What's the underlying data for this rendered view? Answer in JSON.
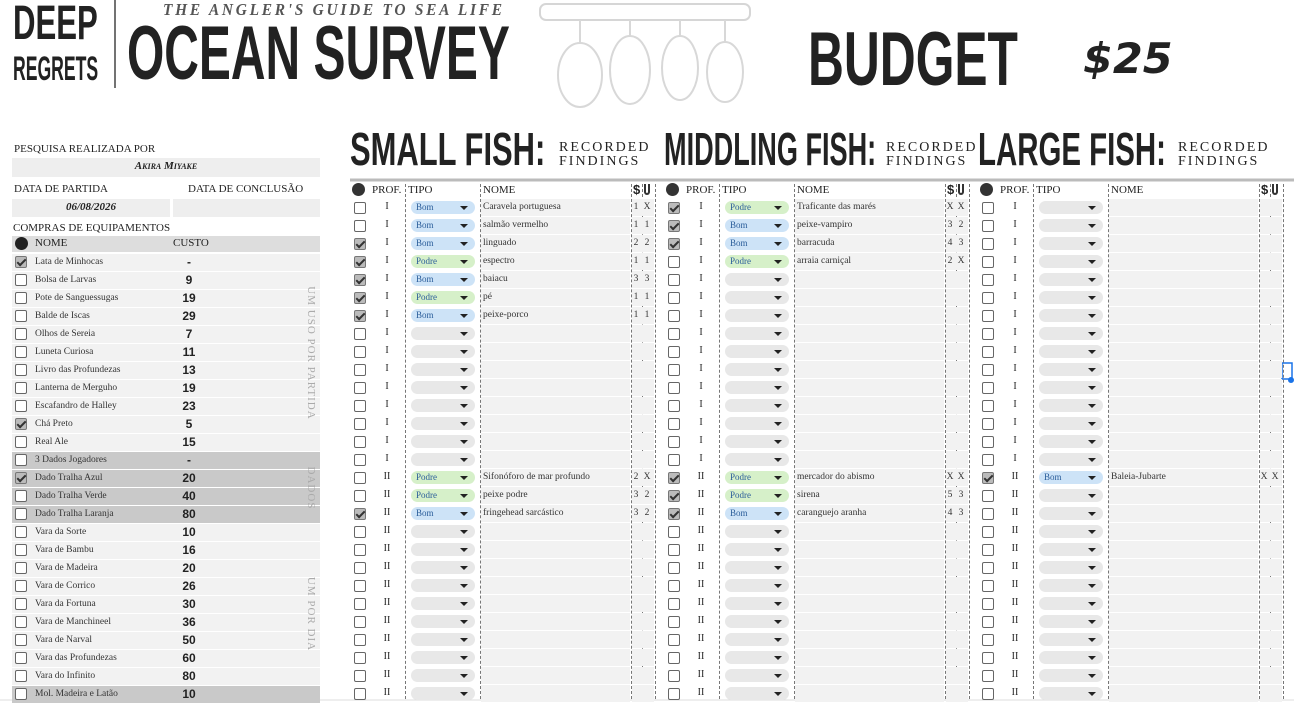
{
  "header": {
    "logo_top": "DEEP",
    "logo_bottom": "REGRETS",
    "tagline": "THE ANGLER'S GUIDE TO SEA LIFE",
    "title": "OCEAN SURVEY",
    "budget_label": "BUDGET",
    "budget_value": "$25"
  },
  "survey": {
    "surveyor_label": "PESQUISA REALIZADA POR",
    "surveyor": "Akira Miyake",
    "start_label": "DATA DE PARTIDA",
    "end_label": "DATA DE CONCLUSÃO",
    "start_date": "06/08/2026"
  },
  "equipment": {
    "title": "COMPRAS DE EQUIPAMENTOS",
    "name_header": "NOME",
    "cost_header": "CUSTO",
    "groups": [
      {
        "label": "UM USO POR PARTIDA",
        "items": [
          {
            "name": "Lata de Minhocas",
            "cost": "-",
            "checked": true,
            "shaded": false
          },
          {
            "name": "Bolsa de Larvas",
            "cost": 9,
            "checked": false,
            "shaded": false
          },
          {
            "name": "Pote de Sanguessugas",
            "cost": 19,
            "checked": false,
            "shaded": false
          },
          {
            "name": "Balde de Iscas",
            "cost": 29,
            "checked": false,
            "shaded": false
          },
          {
            "name": "Olhos de Sereia",
            "cost": 7,
            "checked": false,
            "shaded": false
          },
          {
            "name": "Luneta Curiosa",
            "cost": 11,
            "checked": false,
            "shaded": false
          },
          {
            "name": "Livro das Profundezas",
            "cost": 13,
            "checked": false,
            "shaded": false
          },
          {
            "name": "Lanterna de Merguho",
            "cost": 19,
            "checked": false,
            "shaded": false
          },
          {
            "name": "Escafandro de Halley",
            "cost": 23,
            "checked": false,
            "shaded": false
          },
          {
            "name": "Chá Preto",
            "cost": 5,
            "checked": true,
            "shaded": false
          },
          {
            "name": "Real Ale",
            "cost": 15,
            "checked": false,
            "shaded": false
          }
        ]
      },
      {
        "label": "DADOS",
        "items": [
          {
            "name": "3 Dados Jogadores",
            "cost": "-",
            "checked": false,
            "shaded": true
          },
          {
            "name": "Dado Tralha Azul",
            "cost": 20,
            "checked": true,
            "shaded": true
          },
          {
            "name": "Dado Tralha Verde",
            "cost": 40,
            "checked": false,
            "shaded": true
          },
          {
            "name": "Dado Tralha Laranja",
            "cost": 80,
            "checked": false,
            "shaded": true
          }
        ]
      },
      {
        "label": "UM POR DIA",
        "items": [
          {
            "name": "Vara da Sorte",
            "cost": 10,
            "checked": false,
            "shaded": false
          },
          {
            "name": "Vara de Bambu",
            "cost": 16,
            "checked": false,
            "shaded": false
          },
          {
            "name": "Vara de Madeira",
            "cost": 20,
            "checked": false,
            "shaded": false
          },
          {
            "name": "Vara de Corrico",
            "cost": 26,
            "checked": false,
            "shaded": false
          },
          {
            "name": "Vara da Fortuna",
            "cost": 30,
            "checked": false,
            "shaded": false
          },
          {
            "name": "Vara de Manchineel",
            "cost": 36,
            "checked": false,
            "shaded": false
          },
          {
            "name": "Vara de Narval",
            "cost": 50,
            "checked": false,
            "shaded": false
          },
          {
            "name": "Vara das Profundezas",
            "cost": 60,
            "checked": false,
            "shaded": false
          },
          {
            "name": "Vara do Infinito",
            "cost": 80,
            "checked": false,
            "shaded": false
          },
          {
            "name": "Mol. Madeira e Latão",
            "cost": 10,
            "checked": false,
            "shaded": true
          }
        ]
      }
    ]
  },
  "type_colors": {
    "Bom": "#cde3f7",
    "Podre": "#d6f0c9"
  },
  "fish_sections": [
    {
      "title": "SMALL FISH:",
      "subtitle": [
        "RECORDED",
        "FINDINGS"
      ],
      "headers": {
        "prof": "PROF.",
        "tipo": "TIPO",
        "nome": "NOME",
        "cost": "$"
      },
      "rows": [
        {
          "checked": false,
          "depth": "I",
          "type": "Bom",
          "name": "Caravela portuguesa",
          "cost": 1,
          "hook": "X"
        },
        {
          "checked": false,
          "depth": "I",
          "type": "Bom",
          "name": "salmão vermelho",
          "cost": 1,
          "hook": 1
        },
        {
          "checked": true,
          "depth": "I",
          "type": "Bom",
          "name": "linguado",
          "cost": 2,
          "hook": 2
        },
        {
          "checked": true,
          "depth": "I",
          "type": "Podre",
          "name": "espectro",
          "cost": 1,
          "hook": 1
        },
        {
          "checked": true,
          "depth": "I",
          "type": "Bom",
          "name": "baiacu",
          "cost": 3,
          "hook": 3
        },
        {
          "checked": true,
          "depth": "I",
          "type": "Podre",
          "name": "pé",
          "cost": 1,
          "hook": 1
        },
        {
          "checked": true,
          "depth": "I",
          "type": "Bom",
          "name": "peixe-porco",
          "cost": 1,
          "hook": 1
        },
        {
          "checked": false,
          "depth": "I"
        },
        {
          "checked": false,
          "depth": "I"
        },
        {
          "checked": false,
          "depth": "I"
        },
        {
          "checked": false,
          "depth": "I"
        },
        {
          "checked": false,
          "depth": "I"
        },
        {
          "checked": false,
          "depth": "I"
        },
        {
          "checked": false,
          "depth": "I"
        },
        {
          "checked": false,
          "depth": "I"
        },
        {
          "checked": false,
          "depth": "II",
          "type": "Podre",
          "name": "Sifonóforo de mar profundo",
          "cost": 2,
          "hook": "X"
        },
        {
          "checked": false,
          "depth": "II",
          "type": "Podre",
          "name": "peixe podre",
          "cost": 3,
          "hook": 2
        },
        {
          "checked": true,
          "depth": "II",
          "type": "Bom",
          "name": "fringehead sarcástico",
          "cost": 3,
          "hook": 2
        },
        {
          "checked": false,
          "depth": "II"
        },
        {
          "checked": false,
          "depth": "II"
        },
        {
          "checked": false,
          "depth": "II"
        },
        {
          "checked": false,
          "depth": "II"
        },
        {
          "checked": false,
          "depth": "II"
        },
        {
          "checked": false,
          "depth": "II"
        },
        {
          "checked": false,
          "depth": "II"
        },
        {
          "checked": false,
          "depth": "II"
        },
        {
          "checked": false,
          "depth": "II"
        },
        {
          "checked": false,
          "depth": "II"
        }
      ]
    },
    {
      "title": "MIDDLING FISH:",
      "subtitle": [
        "RECORDED",
        "FINDINGS"
      ],
      "headers": {
        "prof": "PROF.",
        "tipo": "TIPO",
        "nome": "NOME",
        "cost": "$"
      },
      "rows": [
        {
          "checked": true,
          "depth": "I",
          "type": "Podre",
          "name": "Traficante das marés",
          "cost": "X",
          "hook": "X"
        },
        {
          "checked": true,
          "depth": "I",
          "type": "Bom",
          "name": "peixe-vampiro",
          "cost": 3,
          "hook": 2
        },
        {
          "checked": true,
          "depth": "I",
          "type": "Bom",
          "name": "barracuda",
          "cost": 4,
          "hook": 3
        },
        {
          "checked": false,
          "depth": "I",
          "type": "Podre",
          "name": "arraia carniçal",
          "cost": 2,
          "hook": "X"
        },
        {
          "checked": false,
          "depth": "I"
        },
        {
          "checked": false,
          "depth": "I"
        },
        {
          "checked": false,
          "depth": "I"
        },
        {
          "checked": false,
          "depth": "I"
        },
        {
          "checked": false,
          "depth": "I"
        },
        {
          "checked": false,
          "depth": "I"
        },
        {
          "checked": false,
          "depth": "I"
        },
        {
          "checked": false,
          "depth": "I"
        },
        {
          "checked": false,
          "depth": "I"
        },
        {
          "checked": false,
          "depth": "I"
        },
        {
          "checked": false,
          "depth": "I"
        },
        {
          "checked": true,
          "depth": "II",
          "type": "Podre",
          "name": "mercador do abismo",
          "cost": "X",
          "hook": "X"
        },
        {
          "checked": true,
          "depth": "II",
          "type": "Podre",
          "name": "sirena",
          "cost": 5,
          "hook": 3
        },
        {
          "checked": true,
          "depth": "II",
          "type": "Bom",
          "name": "caranguejo aranha",
          "cost": 4,
          "hook": 3
        },
        {
          "checked": false,
          "depth": "II"
        },
        {
          "checked": false,
          "depth": "II"
        },
        {
          "checked": false,
          "depth": "II"
        },
        {
          "checked": false,
          "depth": "II"
        },
        {
          "checked": false,
          "depth": "II"
        },
        {
          "checked": false,
          "depth": "II"
        },
        {
          "checked": false,
          "depth": "II"
        },
        {
          "checked": false,
          "depth": "II"
        },
        {
          "checked": false,
          "depth": "II"
        },
        {
          "checked": false,
          "depth": "II"
        }
      ]
    },
    {
      "title": "LARGE FISH:",
      "subtitle": [
        "RECORDED",
        "FINDINGS"
      ],
      "headers": {
        "prof": "PROF.",
        "tipo": "TIPO",
        "nome": "NOME",
        "cost": "$"
      },
      "rows": [
        {
          "checked": false,
          "depth": "I"
        },
        {
          "checked": false,
          "depth": "I"
        },
        {
          "checked": false,
          "depth": "I"
        },
        {
          "checked": false,
          "depth": "I"
        },
        {
          "checked": false,
          "depth": "I"
        },
        {
          "checked": false,
          "depth": "I"
        },
        {
          "checked": false,
          "depth": "I"
        },
        {
          "checked": false,
          "depth": "I"
        },
        {
          "checked": false,
          "depth": "I"
        },
        {
          "checked": false,
          "depth": "I"
        },
        {
          "checked": false,
          "depth": "I"
        },
        {
          "checked": false,
          "depth": "I"
        },
        {
          "checked": false,
          "depth": "I"
        },
        {
          "checked": false,
          "depth": "I"
        },
        {
          "checked": false,
          "depth": "I"
        },
        {
          "checked": true,
          "depth": "II",
          "type": "Bom",
          "name": "Baleia-Jubarte",
          "cost": "X",
          "hook": "X"
        },
        {
          "checked": false,
          "depth": "II"
        },
        {
          "checked": false,
          "depth": "II"
        },
        {
          "checked": false,
          "depth": "II"
        },
        {
          "checked": false,
          "depth": "II"
        },
        {
          "checked": false,
          "depth": "II"
        },
        {
          "checked": false,
          "depth": "II"
        },
        {
          "checked": false,
          "depth": "II"
        },
        {
          "checked": false,
          "depth": "II"
        },
        {
          "checked": false,
          "depth": "II"
        },
        {
          "checked": false,
          "depth": "II"
        },
        {
          "checked": false,
          "depth": "II"
        },
        {
          "checked": false,
          "depth": "II"
        }
      ]
    }
  ]
}
